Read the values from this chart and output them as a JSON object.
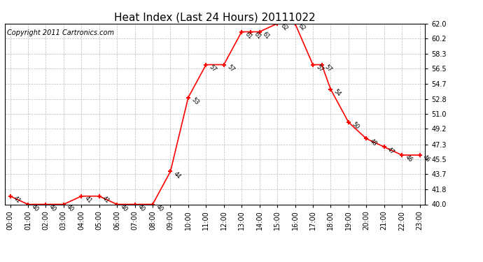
{
  "title": "Heat Index (Last 24 Hours) 20111022",
  "copyright": "Copyright 2011 Cartronics.com",
  "x_labels": [
    "00:00",
    "01:00",
    "02:00",
    "03:00",
    "04:00",
    "05:00",
    "06:00",
    "07:00",
    "08:00",
    "09:00",
    "10:00",
    "11:00",
    "12:00",
    "13:00",
    "14:00",
    "15:00",
    "16:00",
    "17:00",
    "18:00",
    "19:00",
    "20:00",
    "21:00",
    "22:00",
    "23:00"
  ],
  "hours": [
    0,
    1,
    2,
    3,
    4,
    5,
    5,
    6,
    7,
    8,
    9,
    10,
    11,
    12,
    13,
    13.5,
    14,
    15,
    16,
    17,
    17.5,
    18,
    19,
    20,
    21,
    22,
    23
  ],
  "values": [
    41,
    40,
    40,
    40,
    41,
    41,
    41,
    40,
    40,
    40,
    44,
    53,
    57,
    57,
    61,
    61,
    61,
    62,
    62,
    57,
    57,
    54,
    50,
    48,
    47,
    46,
    46
  ],
  "ylim_min": 40.0,
  "ylim_max": 62.0,
  "yticks": [
    40.0,
    41.8,
    43.7,
    45.5,
    47.3,
    49.2,
    51.0,
    52.8,
    54.7,
    56.5,
    58.3,
    60.2,
    62.0
  ],
  "line_color": "red",
  "bg_color": "white",
  "grid_color": "#bbbbbb",
  "title_fontsize": 11,
  "copyright_fontsize": 7,
  "tick_fontsize": 7,
  "annot_fontsize": 6
}
